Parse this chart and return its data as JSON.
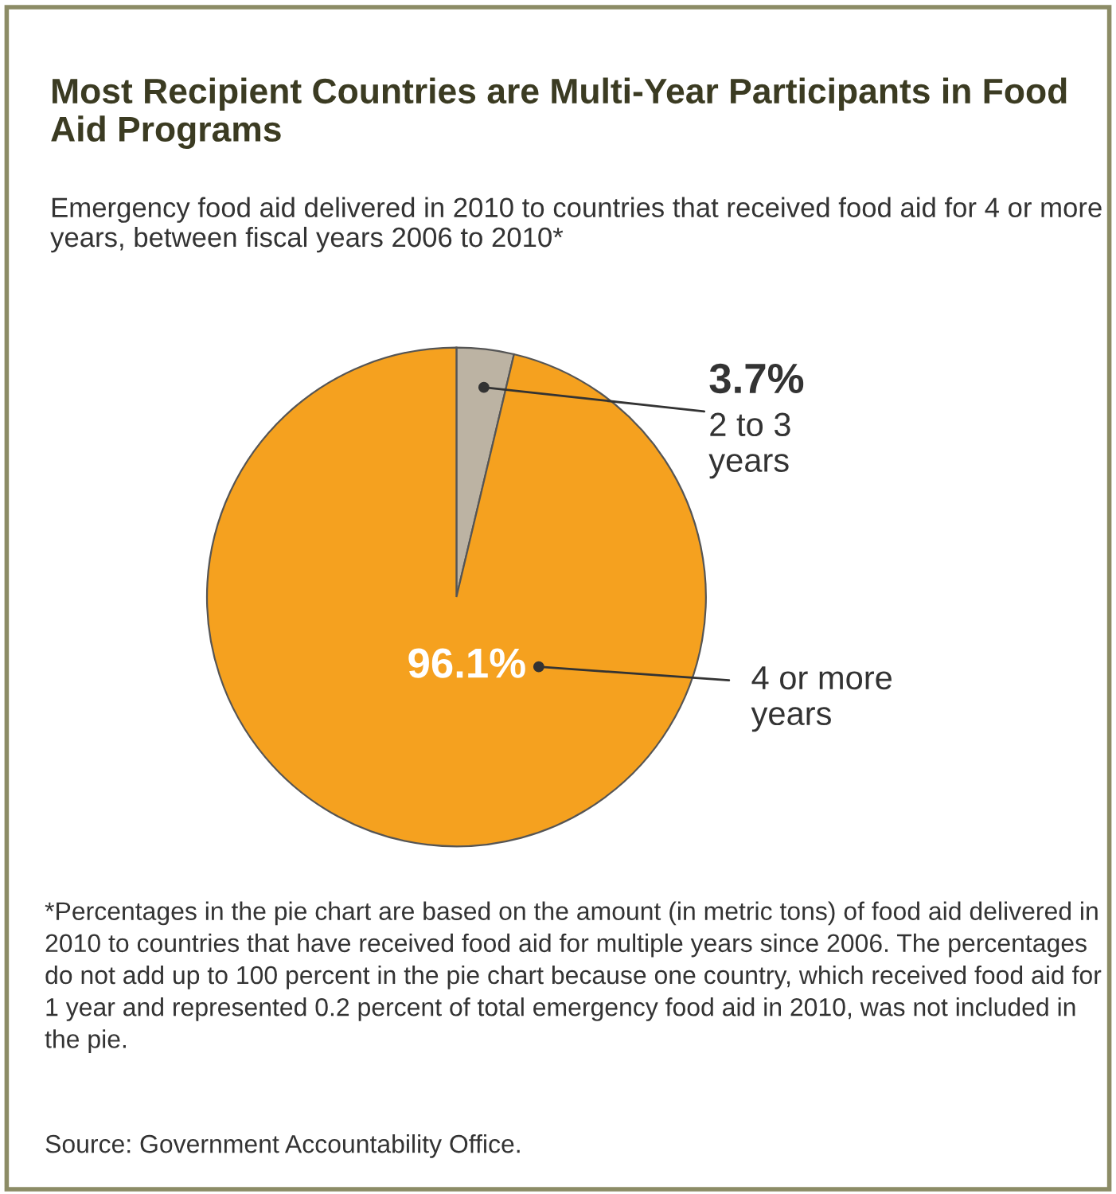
{
  "chart_data": {
    "type": "pie",
    "title": "Most Recipient Countries are Multi-Year Participants in Food Aid Programs",
    "subtitle": "Emergency food aid delivered in 2010 to countries that received food aid for 4 or more years, between fiscal years 2006 to 2010*",
    "categories": [
      "2 to 3 years",
      "4 or more years"
    ],
    "values": [
      3.7,
      96.1
    ],
    "colors": [
      "#bcb3a3",
      "#f5a11f"
    ],
    "value_labels": [
      "3.7%",
      "96.1%"
    ],
    "annotations": [
      "*Percentages in the pie chart are based on the amount (in metric tons) of food aid delivered in 2010 to countries that have received food aid for multiple years since 2006. The percentages do not add up to 100 percent in the pie chart because one country, which received food aid for 1 year and represented 0.2 percent of total emergency food aid in 2010, was not included in the pie.",
      "Source: Government Accountability Office."
    ]
  }
}
